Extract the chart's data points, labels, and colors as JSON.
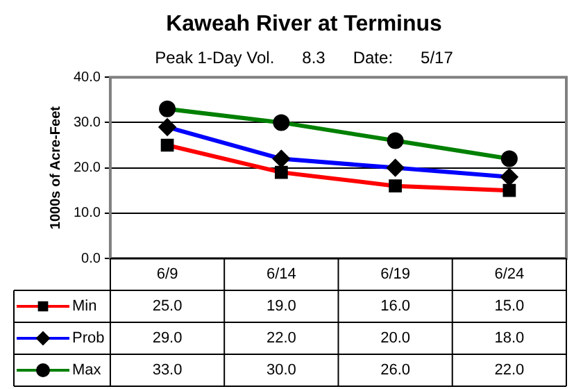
{
  "chart_data": {
    "type": "line",
    "title": "Kaweah River at Terminus",
    "subtitle": "Peak 1-Day Vol.      8.3      Date:      5/17",
    "ylabel": "1000s of Acre-Feet",
    "categories": [
      "6/9",
      "6/14",
      "6/19",
      "6/24"
    ],
    "series": [
      {
        "name": "Min",
        "color": "#ff0000",
        "marker": "square",
        "values": [
          25,
          19,
          16,
          15
        ],
        "value_labels": [
          "25.0",
          "19.0",
          "16.0",
          "15.0"
        ]
      },
      {
        "name": "Prob",
        "color": "#0000ff",
        "marker": "diamond",
        "values": [
          29,
          22,
          20,
          18
        ],
        "value_labels": [
          "29.0",
          "22.0",
          "20.0",
          "18.0"
        ]
      },
      {
        "name": "Max",
        "color": "#008000",
        "marker": "circle",
        "values": [
          33,
          30,
          26,
          22
        ],
        "value_labels": [
          "33.0",
          "30.0",
          "26.0",
          "22.0"
        ]
      }
    ],
    "ylim": [
      0,
      40
    ],
    "yticks": [
      {
        "value": 0,
        "label": "0.0"
      },
      {
        "value": 10,
        "label": "10.0"
      },
      {
        "value": 20,
        "label": "20.0"
      },
      {
        "value": 30,
        "label": "30.0"
      },
      {
        "value": 40,
        "label": "40.0"
      }
    ],
    "grid": "y",
    "legend": "left",
    "line_style": "solid"
  }
}
